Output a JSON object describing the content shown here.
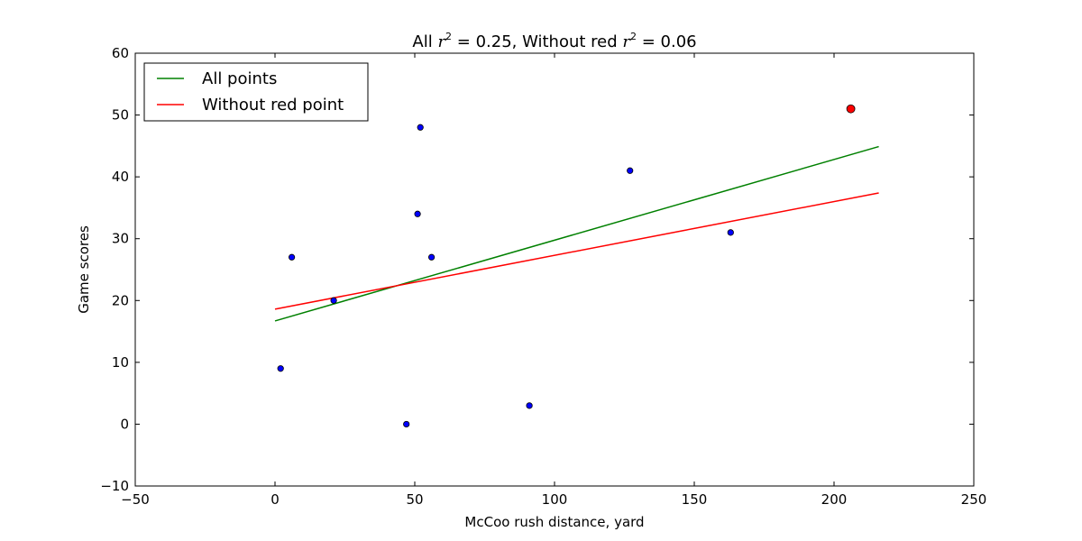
{
  "chart_data": {
    "type": "scatter",
    "title": {
      "prefix": "All ",
      "var": "r",
      "sup": "2",
      "middle": " = 0.25, Without red ",
      "var2": "r",
      "sup2": "2",
      "suffix": " = 0.06"
    },
    "xlabel": "McCoo rush distance, yard",
    "ylabel": "Game scores",
    "xlim": [
      -50,
      250
    ],
    "ylim": [
      -10,
      60
    ],
    "xticks": [
      -50,
      0,
      50,
      100,
      150,
      200,
      250
    ],
    "yticks": [
      -10,
      0,
      10,
      20,
      30,
      40,
      50,
      60
    ],
    "tick_labels_x": [
      "−50",
      "0",
      "50",
      "100",
      "150",
      "200",
      "250"
    ],
    "tick_labels_y": [
      "−10",
      "0",
      "10",
      "20",
      "30",
      "40",
      "50",
      "60"
    ],
    "grid": false,
    "legend_position": "top-left",
    "points": [
      {
        "x": 2,
        "y": 9,
        "color": "#0000ff"
      },
      {
        "x": 6,
        "y": 27,
        "color": "#0000ff"
      },
      {
        "x": 21,
        "y": 20,
        "color": "#0000ff"
      },
      {
        "x": 47,
        "y": 0,
        "color": "#0000ff"
      },
      {
        "x": 51,
        "y": 34,
        "color": "#0000ff"
      },
      {
        "x": 52,
        "y": 48,
        "color": "#0000ff"
      },
      {
        "x": 56,
        "y": 27,
        "color": "#0000ff"
      },
      {
        "x": 91,
        "y": 3,
        "color": "#0000ff"
      },
      {
        "x": 127,
        "y": 41,
        "color": "#0000ff"
      },
      {
        "x": 163,
        "y": 31,
        "color": "#0000ff"
      },
      {
        "x": 206,
        "y": 51,
        "color": "#ff0000",
        "highlight": true
      }
    ],
    "series": [
      {
        "name": "All points",
        "color": "#008000",
        "x": [
          0,
          216
        ],
        "y": [
          16.7,
          44.9
        ]
      },
      {
        "name": "Without red point",
        "color": "#ff0000",
        "x": [
          0,
          216
        ],
        "y": [
          18.6,
          37.4
        ]
      }
    ]
  }
}
